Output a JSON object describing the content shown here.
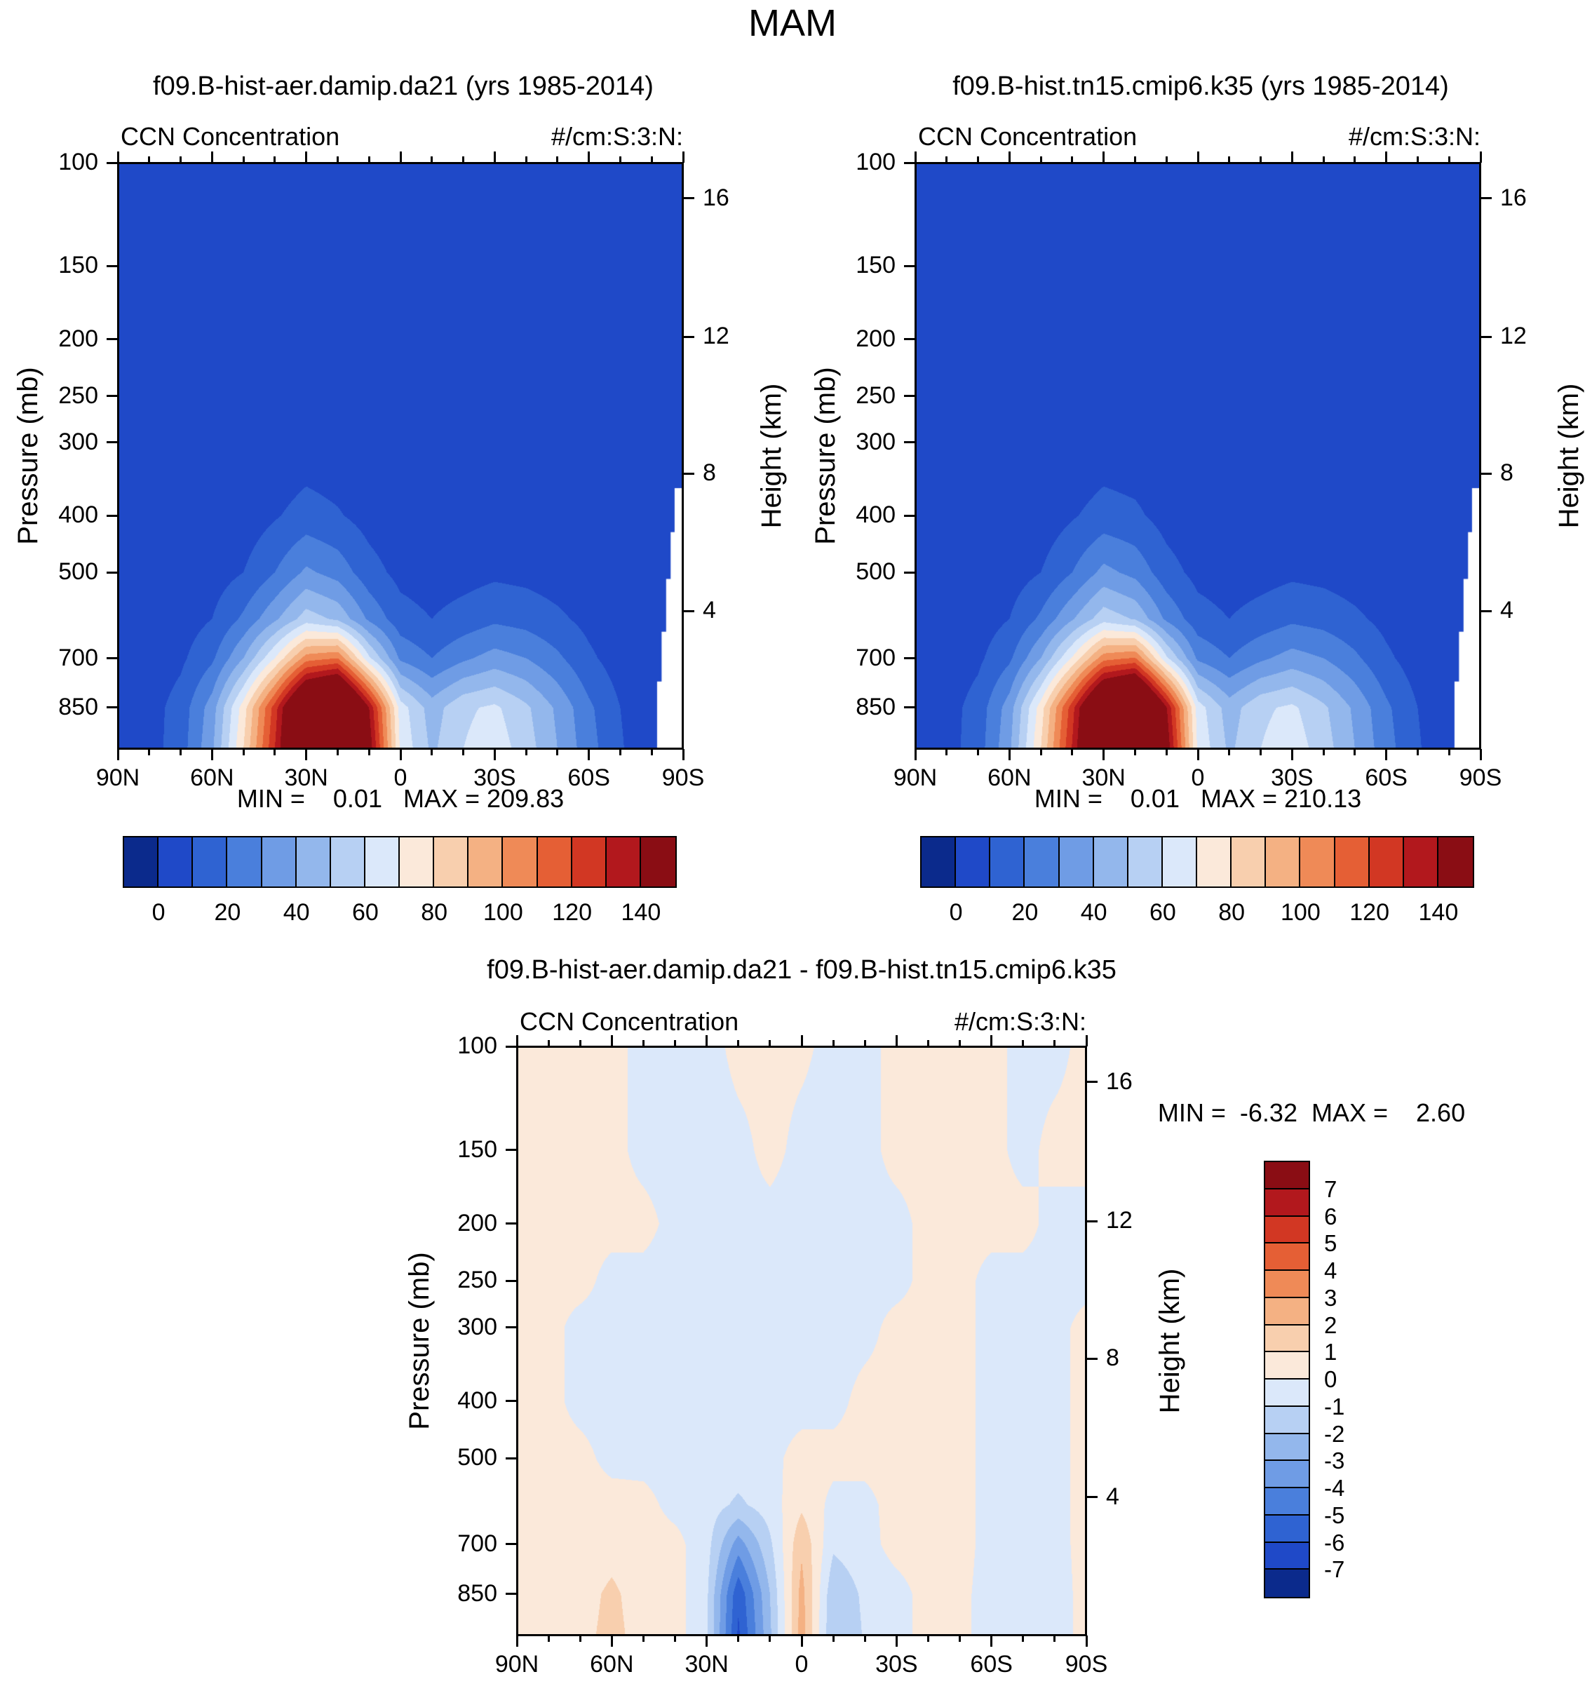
{
  "page_title": "MAM",
  "p1": {
    "title": "f09.B-hist-aer.damip.da21 (yrs 1985-2014)",
    "var_label": "CCN Concentration",
    "units_label": "#/cm:S:3:N:",
    "ylabel": "Pressure (mb)",
    "y2label": "Height (km)",
    "stats": "MIN =    0.01   MAX = 209.83"
  },
  "p2": {
    "title": "f09.B-hist.tn15.cmip6.k35 (yrs 1985-2014)",
    "var_label": "CCN Concentration",
    "units_label": "#/cm:S:3:N:",
    "ylabel": "Pressure (mb)",
    "y2label": "Height (km)",
    "stats": "MIN =    0.01   MAX = 210.13"
  },
  "p3": {
    "title": "f09.B-hist-aer.damip.da21 - f09.B-hist.tn15.cmip6.k35",
    "var_label": "CCN Concentration",
    "units_label": "#/cm:S:3:N:",
    "ylabel": "Pressure (mb)",
    "y2label": "Height (km)",
    "stats": "MIN =  -6.32  MAX =    2.60"
  },
  "chart_data": [
    {
      "type": "heatmap",
      "name": "ccn-concentration-run1",
      "title": "f09.B-hist-aer.damip.da21 (yrs 1985-2014)",
      "xlabel": "Latitude",
      "ylabel": "Pressure (mb)",
      "y2label": "Height (km)",
      "min": 0.01,
      "max": 209.83,
      "x_lat_deg": [
        90,
        80,
        70,
        60,
        50,
        40,
        30,
        20,
        10,
        0,
        -10,
        -20,
        -30,
        -40,
        -50,
        -60,
        -70,
        -80,
        -90
      ],
      "x_tick_labels": [
        "90N",
        "60N",
        "30N",
        "0",
        "30S",
        "60S",
        "90S"
      ],
      "y_pressure_mb": [
        100,
        150,
        200,
        250,
        300,
        400,
        500,
        600,
        700,
        850,
        1000
      ],
      "y_tick_labels": [
        "100",
        "150",
        "200",
        "250",
        "300",
        "400",
        "500",
        "700",
        "850"
      ],
      "y_tick_pressures": [
        100,
        150,
        200,
        250,
        300,
        400,
        500,
        700,
        850
      ],
      "ylim_mb": [
        100,
        1000
      ],
      "height_km_ticks": [
        "16",
        "12",
        "8",
        "4"
      ],
      "height_tick_pressures": [
        115,
        198,
        339,
        582
      ],
      "levels": [
        0,
        10,
        20,
        30,
        40,
        50,
        60,
        70,
        80,
        90,
        100,
        110,
        120,
        130,
        140,
        150
      ],
      "colors": [
        "#0b2a8c",
        "#1f49c8",
        "#2f63d2",
        "#4a7fdc",
        "#6f9ce5",
        "#93b7ec",
        "#b7d0f3",
        "#dbe8fa",
        "#fbe9da",
        "#f8cfae",
        "#f4b183",
        "#ef8a57",
        "#e55f35",
        "#d23723",
        "#b2181d",
        "#8a0d14"
      ],
      "colorbar_labels": [
        "0",
        "20",
        "40",
        "60",
        "80",
        "100",
        "120",
        "140"
      ],
      "values": [
        [
          1,
          1,
          1,
          1,
          1,
          1,
          1,
          1,
          1,
          1,
          1,
          1,
          1,
          1,
          1,
          1,
          1,
          1,
          1
        ],
        [
          1,
          1,
          1,
          1,
          1,
          1,
          1,
          1,
          1,
          1,
          1,
          1,
          1,
          1,
          1,
          1,
          1,
          1,
          1
        ],
        [
          1,
          1,
          1,
          1,
          1,
          1,
          1,
          1,
          1,
          1,
          1,
          1,
          1,
          1,
          1,
          1,
          1,
          1,
          1
        ],
        [
          1,
          1,
          1,
          1,
          1,
          1,
          2,
          1,
          1,
          1,
          1,
          1,
          1,
          1,
          1,
          1,
          1,
          1,
          1
        ],
        [
          1,
          1,
          1,
          1,
          1,
          2,
          4,
          3,
          2,
          1,
          1,
          1,
          1,
          1,
          1,
          1,
          1,
          1,
          1
        ],
        [
          1,
          1,
          2,
          2,
          4,
          9,
          14,
          11,
          6,
          3,
          2,
          2,
          2,
          2,
          2,
          1,
          1,
          1,
          1
        ],
        [
          1,
          2,
          3,
          5,
          10,
          20,
          32,
          26,
          14,
          7,
          5,
          6,
          8,
          7,
          5,
          3,
          2,
          1,
          1
        ],
        [
          2,
          3,
          5,
          10,
          22,
          38,
          55,
          48,
          28,
          14,
          10,
          14,
          18,
          16,
          12,
          7,
          3,
          1,
          1
        ],
        [
          2,
          4,
          8,
          18,
          40,
          70,
          105,
          110,
          62,
          28,
          20,
          28,
          34,
          30,
          22,
          12,
          5,
          2,
          1
        ],
        [
          3,
          6,
          14,
          35,
          75,
          125,
          185,
          205,
          140,
          65,
          45,
          58,
          62,
          52,
          38,
          22,
          10,
          3,
          1
        ],
        [
          3,
          6,
          15,
          38,
          80,
          130,
          190,
          208,
          148,
          68,
          48,
          60,
          66,
          55,
          40,
          24,
          11,
          3,
          1
        ]
      ],
      "mask_frac": [
        [
          1.01,
          0.555
        ],
        [
          0.985,
          0.555
        ],
        [
          0.985,
          0.63
        ],
        [
          0.978,
          0.63
        ],
        [
          0.978,
          0.71
        ],
        [
          0.97,
          0.71
        ],
        [
          0.97,
          0.8
        ],
        [
          0.962,
          0.8
        ],
        [
          0.962,
          0.885
        ],
        [
          0.954,
          0.885
        ],
        [
          0.954,
          1.01
        ],
        [
          1.01,
          1.01
        ]
      ]
    },
    {
      "type": "heatmap",
      "name": "ccn-concentration-run2",
      "title": "f09.B-hist.tn15.cmip6.k35 (yrs 1985-2014)",
      "xlabel": "Latitude",
      "ylabel": "Pressure (mb)",
      "y2label": "Height (km)",
      "min": 0.01,
      "max": 210.13,
      "x_lat_deg": [
        90,
        80,
        70,
        60,
        50,
        40,
        30,
        20,
        10,
        0,
        -10,
        -20,
        -30,
        -40,
        -50,
        -60,
        -70,
        -80,
        -90
      ],
      "x_tick_labels": [
        "90N",
        "60N",
        "30N",
        "0",
        "30S",
        "60S",
        "90S"
      ],
      "y_pressure_mb": [
        100,
        150,
        200,
        250,
        300,
        400,
        500,
        600,
        700,
        850,
        1000
      ],
      "y_tick_labels": [
        "100",
        "150",
        "200",
        "250",
        "300",
        "400",
        "500",
        "700",
        "850"
      ],
      "y_tick_pressures": [
        100,
        150,
        200,
        250,
        300,
        400,
        500,
        700,
        850
      ],
      "ylim_mb": [
        100,
        1000
      ],
      "height_km_ticks": [
        "16",
        "12",
        "8",
        "4"
      ],
      "height_tick_pressures": [
        115,
        198,
        339,
        582
      ],
      "levels": [
        0,
        10,
        20,
        30,
        40,
        50,
        60,
        70,
        80,
        90,
        100,
        110,
        120,
        130,
        140,
        150
      ],
      "colors": [
        "#0b2a8c",
        "#1f49c8",
        "#2f63d2",
        "#4a7fdc",
        "#6f9ce5",
        "#93b7ec",
        "#b7d0f3",
        "#dbe8fa",
        "#fbe9da",
        "#f8cfae",
        "#f4b183",
        "#ef8a57",
        "#e55f35",
        "#d23723",
        "#b2181d",
        "#8a0d14"
      ],
      "colorbar_labels": [
        "0",
        "20",
        "40",
        "60",
        "80",
        "100",
        "120",
        "140"
      ],
      "values": [
        [
          1,
          1,
          1,
          1,
          1,
          1,
          1,
          1,
          1,
          1,
          1,
          1,
          1,
          1,
          1,
          1,
          1,
          1,
          1
        ],
        [
          1,
          1,
          1,
          1,
          1,
          1,
          1,
          1,
          1,
          1,
          1,
          1,
          1,
          1,
          1,
          1,
          1,
          1,
          1
        ],
        [
          1,
          1,
          1,
          1,
          1,
          1,
          1,
          1,
          1,
          1,
          1,
          1,
          1,
          1,
          1,
          1,
          1,
          1,
          1
        ],
        [
          1,
          1,
          1,
          1,
          1,
          1,
          2,
          1,
          1,
          1,
          1,
          1,
          1,
          1,
          1,
          1,
          1,
          1,
          1
        ],
        [
          1,
          1,
          1,
          1,
          1,
          2,
          4,
          3,
          2,
          1,
          1,
          1,
          1,
          1,
          1,
          1,
          1,
          1,
          1
        ],
        [
          1,
          1,
          2,
          2,
          4,
          9,
          14,
          12,
          6,
          3,
          2,
          2,
          2,
          2,
          2,
          1,
          1,
          1,
          1
        ],
        [
          1,
          2,
          3,
          5,
          10,
          20,
          33,
          27,
          14,
          7,
          5,
          6,
          8,
          7,
          5,
          3,
          2,
          1,
          1
        ],
        [
          2,
          3,
          5,
          10,
          22,
          39,
          56,
          49,
          28,
          14,
          10,
          14,
          18,
          16,
          12,
          7,
          3,
          1,
          1
        ],
        [
          2,
          4,
          8,
          18,
          40,
          71,
          106,
          111,
          62,
          28,
          20,
          28,
          34,
          30,
          22,
          12,
          5,
          2,
          1
        ],
        [
          3,
          6,
          14,
          35,
          75,
          126,
          186,
          206,
          141,
          65,
          45,
          58,
          62,
          52,
          38,
          22,
          10,
          3,
          1
        ],
        [
          3,
          6,
          15,
          38,
          80,
          131,
          191,
          209,
          149,
          68,
          48,
          60,
          66,
          55,
          40,
          24,
          11,
          3,
          1
        ]
      ],
      "mask_frac": [
        [
          1.01,
          0.555
        ],
        [
          0.985,
          0.555
        ],
        [
          0.985,
          0.63
        ],
        [
          0.978,
          0.63
        ],
        [
          0.978,
          0.71
        ],
        [
          0.97,
          0.71
        ],
        [
          0.97,
          0.8
        ],
        [
          0.962,
          0.8
        ],
        [
          0.962,
          0.885
        ],
        [
          0.954,
          0.885
        ],
        [
          0.954,
          1.01
        ],
        [
          1.01,
          1.01
        ]
      ]
    },
    {
      "type": "heatmap",
      "name": "ccn-concentration-difference",
      "title": "f09.B-hist-aer.damip.da21 - f09.B-hist.tn15.cmip6.k35",
      "xlabel": "Latitude",
      "ylabel": "Pressure (mb)",
      "y2label": "Height (km)",
      "min": -6.32,
      "max": 2.6,
      "x_lat_deg": [
        90,
        80,
        70,
        60,
        50,
        40,
        30,
        20,
        10,
        0,
        -10,
        -20,
        -30,
        -40,
        -50,
        -60,
        -70,
        -80,
        -90
      ],
      "x_tick_labels": [
        "90N",
        "60N",
        "30N",
        "0",
        "30S",
        "60S",
        "90S"
      ],
      "y_pressure_mb": [
        100,
        150,
        200,
        250,
        300,
        400,
        500,
        600,
        700,
        850,
        1000
      ],
      "y_tick_labels": [
        "100",
        "150",
        "200",
        "250",
        "300",
        "400",
        "500",
        "700",
        "850"
      ],
      "y_tick_pressures": [
        100,
        150,
        200,
        250,
        300,
        400,
        500,
        700,
        850
      ],
      "ylim_mb": [
        100,
        1000
      ],
      "height_km_ticks": [
        "16",
        "12",
        "8",
        "4"
      ],
      "height_tick_pressures": [
        115,
        198,
        339,
        582
      ],
      "levels": [
        -7,
        -6,
        -5,
        -4,
        -3,
        -2,
        -1,
        0,
        1,
        2,
        3,
        4,
        5,
        6,
        7
      ],
      "colors": [
        "#0b2a8c",
        "#1f49c8",
        "#2f63d2",
        "#4a7fdc",
        "#6f9ce5",
        "#93b7ec",
        "#b7d0f3",
        "#dbe8fa",
        "#fbe9da",
        "#f8cfae",
        "#f4b183",
        "#ef8a57",
        "#e55f35",
        "#d23723",
        "#b2181d",
        "#8a0d14"
      ],
      "colorbar_labels": [
        "7",
        "6",
        "5",
        "4",
        "3",
        "2",
        "1",
        "0",
        "-1",
        "-2",
        "-3",
        "-4",
        "-5",
        "-6",
        "-7"
      ],
      "values": [
        [
          0.3,
          0.3,
          0.3,
          0.3,
          -0.3,
          -0.4,
          -0.4,
          0.3,
          0.3,
          0.2,
          -0.3,
          -0.3,
          0.3,
          0.3,
          0.3,
          0.3,
          -0.3,
          -0.3,
          0.3
        ],
        [
          0.3,
          0.3,
          0.3,
          0.3,
          -0.3,
          -0.4,
          -0.5,
          -0.3,
          0.3,
          -0.3,
          -0.4,
          -0.3,
          0.3,
          0.3,
          0.3,
          0.3,
          -0.3,
          0.3,
          0.3
        ],
        [
          0.3,
          0.3,
          0.3,
          0.3,
          0.3,
          -0.3,
          -0.4,
          -0.3,
          -0.3,
          -0.4,
          -0.4,
          -0.3,
          -0.3,
          0.3,
          0.3,
          0.3,
          0.3,
          -0.3,
          -0.3
        ],
        [
          0.3,
          0.3,
          0.3,
          -0.3,
          -0.3,
          -0.4,
          -0.4,
          -0.4,
          -0.4,
          -0.4,
          -0.4,
          -0.3,
          -0.3,
          0.3,
          0.3,
          -0.3,
          -0.3,
          -0.3,
          -0.3
        ],
        [
          0.3,
          0.3,
          -0.3,
          -0.3,
          -0.4,
          -0.4,
          -0.4,
          -0.4,
          -0.4,
          -0.4,
          -0.4,
          -0.3,
          0.3,
          0.3,
          0.3,
          -0.3,
          -0.4,
          -0.3,
          0.3
        ],
        [
          0.3,
          0.3,
          -0.3,
          -0.4,
          -0.4,
          -0.5,
          -0.4,
          -0.4,
          -0.4,
          -0.4,
          -0.3,
          0.3,
          0.3,
          0.3,
          0.3,
          -0.3,
          -0.4,
          -0.3,
          0.3
        ],
        [
          0.3,
          0.3,
          0.3,
          -0.3,
          -0.3,
          -0.4,
          -0.4,
          -0.4,
          -0.3,
          0.4,
          0.3,
          0.3,
          0.4,
          0.4,
          0.3,
          -0.3,
          -0.4,
          -0.3,
          0.3
        ],
        [
          0.3,
          0.4,
          0.4,
          0.4,
          0.3,
          -0.3,
          -0.5,
          -1.2,
          -0.5,
          0.8,
          -0.3,
          -0.3,
          0.4,
          0.4,
          0.3,
          -0.3,
          -0.4,
          -0.3,
          0.3
        ],
        [
          0.3,
          0.4,
          0.4,
          0.6,
          0.4,
          0.3,
          -0.6,
          -3.5,
          -1.2,
          1.8,
          -0.8,
          -0.4,
          0.4,
          0.5,
          0.4,
          -0.4,
          -0.5,
          -0.3,
          0.3
        ],
        [
          0.3,
          0.4,
          0.6,
          1.2,
          0.5,
          0.4,
          -0.8,
          -5.8,
          -2.0,
          2.4,
          -1.8,
          -0.8,
          -0.4,
          0.4,
          0.3,
          -0.5,
          -0.9,
          -0.4,
          0.3
        ],
        [
          0.3,
          0.4,
          0.7,
          1.3,
          0.6,
          0.4,
          -0.8,
          -6.2,
          -2.2,
          2.5,
          -2.0,
          -0.9,
          -0.4,
          0.4,
          0.3,
          -0.5,
          -0.9,
          -0.4,
          0.3
        ]
      ]
    }
  ]
}
